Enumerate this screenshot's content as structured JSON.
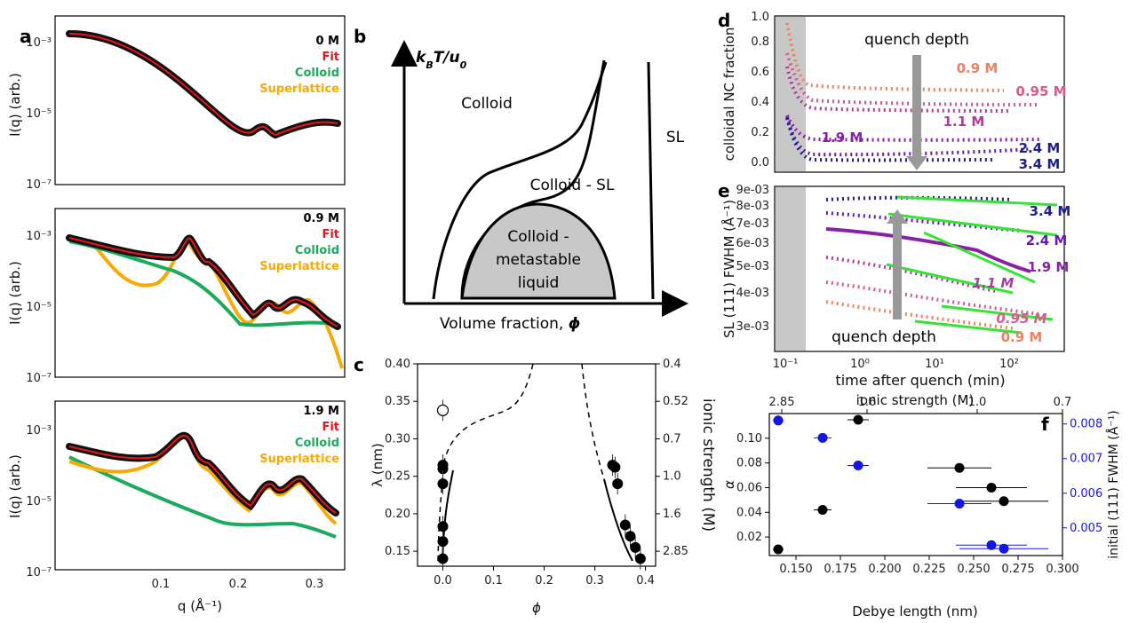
{
  "panel_labels": {
    "a": "a",
    "b": "b",
    "c": "c",
    "d": "d",
    "e": "e",
    "f": "f"
  },
  "colors": {
    "data": "#000000",
    "fit": "#e8141b",
    "colloid": "#1aab5b",
    "superlattice": "#f9a905",
    "green_fit": "#33e533",
    "shade": "#c8c8c8",
    "blue": "#1515e6"
  },
  "panel_a": {
    "ylabel": "I(q) (arb.)",
    "xlabel": "q (Å⁻¹)",
    "x_ticks": [
      "0.1",
      "0.2",
      "0.3"
    ],
    "y_ticks": [
      "10⁻³",
      "10⁻⁵",
      "10⁻⁷"
    ],
    "legend": [
      "Fit",
      "Colloid",
      "Superlattice"
    ],
    "subplots": [
      {
        "label": "0 M",
        "has_colloid": false,
        "has_sl": false
      },
      {
        "label": "0.9 M",
        "has_colloid": true,
        "has_sl": true
      },
      {
        "label": "1.9 M",
        "has_colloid": true,
        "has_sl": true
      }
    ]
  },
  "panel_b": {
    "y_axis": "k",
    "y_sub": "B",
    "y_rest": "T/u",
    "y_sub2": "0",
    "x_axis": "Volume fraction, ",
    "x_symbol": "ϕ",
    "regions": {
      "colloid": "Colloid",
      "sl": "SL",
      "colloid_sl": "Colloid - SL",
      "metastable_1": "Colloid -",
      "metastable_2": "metastable",
      "metastable_3": "liquid"
    }
  },
  "panel_c": {
    "xlabel": "ϕ",
    "ylabel": "λ (nm)",
    "ylabel_right": "ionic strength (M)",
    "x_ticks": [
      "0.0",
      "0.1",
      "0.2",
      "0.3",
      "0.4"
    ],
    "y_ticks": [
      "0.15",
      "0.20",
      "0.25",
      "0.30",
      "0.35",
      "0.40"
    ],
    "y2_ticks": [
      "2.85",
      "1.6",
      "1.0",
      "0.7",
      "0.52",
      "0.4"
    ]
  },
  "panel_d": {
    "ylabel": "colloidal NC fraction",
    "y_ticks": [
      "0.0",
      "0.2",
      "0.4",
      "0.6",
      "0.8",
      "1.0"
    ],
    "annotation": "quench depth",
    "series_labels": [
      "0.9 M",
      "0.95 M",
      "1.1 M",
      "1.9 M",
      "2.4 M",
      "3.4 M"
    ]
  },
  "panel_e": {
    "ylabel": "SL (111) FWHM (Å⁻¹)",
    "xlabel": "time after quench (min)",
    "y_ticks": [
      "9e-03",
      "8e-03",
      "7e-03",
      "6e-03",
      "5e-03",
      "4e-03",
      "3e-03"
    ],
    "x_ticks": [
      "10⁻¹",
      "10⁰",
      "10¹",
      "10²"
    ],
    "annotation": "quench depth",
    "series_labels": [
      "3.4 M",
      "2.4 M",
      "1.9 M",
      "1.1 M",
      "0.95 M",
      "0.9 M"
    ]
  },
  "panel_f": {
    "xlabel": "Debye length (nm)",
    "ylabel": "α",
    "ylabel_right": "initial (111) FWHM (Å⁻¹)",
    "top_label": "ionic strength (M)",
    "top_ticks": [
      "2.85",
      "1.6",
      "1.0",
      "0.7"
    ],
    "x_ticks": [
      "0.150",
      "0.175",
      "0.200",
      "0.225",
      "0.250",
      "0.275",
      "0.300"
    ],
    "y_ticks": [
      "0.02",
      "0.04",
      "0.06",
      "0.08",
      "0.10"
    ],
    "y2_ticks": [
      "0.005",
      "0.006",
      "0.007",
      "0.008"
    ]
  },
  "chart_data": [
    {
      "type": "scatter",
      "panel": "c",
      "x": [
        0.0,
        0.0,
        0.0,
        0.0,
        0.0,
        0.0,
        0.335,
        0.34,
        0.345,
        0.36,
        0.37,
        0.38,
        0.39
      ],
      "y": [
        0.14,
        0.163,
        0.183,
        0.24,
        0.26,
        0.265,
        0.265,
        0.262,
        0.24,
        0.185,
        0.17,
        0.155,
        0.14
      ],
      "open_marker": {
        "x": 0.0,
        "y": 0.338
      },
      "xlim": [
        -0.05,
        0.42
      ],
      "ylim": [
        0.13,
        0.4
      ]
    },
    {
      "type": "scatter",
      "panel": "f",
      "series": [
        {
          "name": "α",
          "x": [
            0.14,
            0.165,
            0.185,
            0.242,
            0.26,
            0.267
          ],
          "y": [
            0.01,
            0.042,
            0.115,
            0.076,
            0.06,
            0.049
          ]
        },
        {
          "name": "initial (111) FWHM",
          "x": [
            0.14,
            0.165,
            0.185,
            0.242,
            0.26,
            0.267
          ],
          "y": [
            0.0081,
            0.0076,
            0.0068,
            0.0057,
            0.0045,
            0.0044
          ]
        }
      ],
      "xlim": [
        0.135,
        0.3
      ],
      "ylim": [
        0.005,
        0.12
      ],
      "y2lim": [
        0.0042,
        0.0083
      ]
    }
  ]
}
